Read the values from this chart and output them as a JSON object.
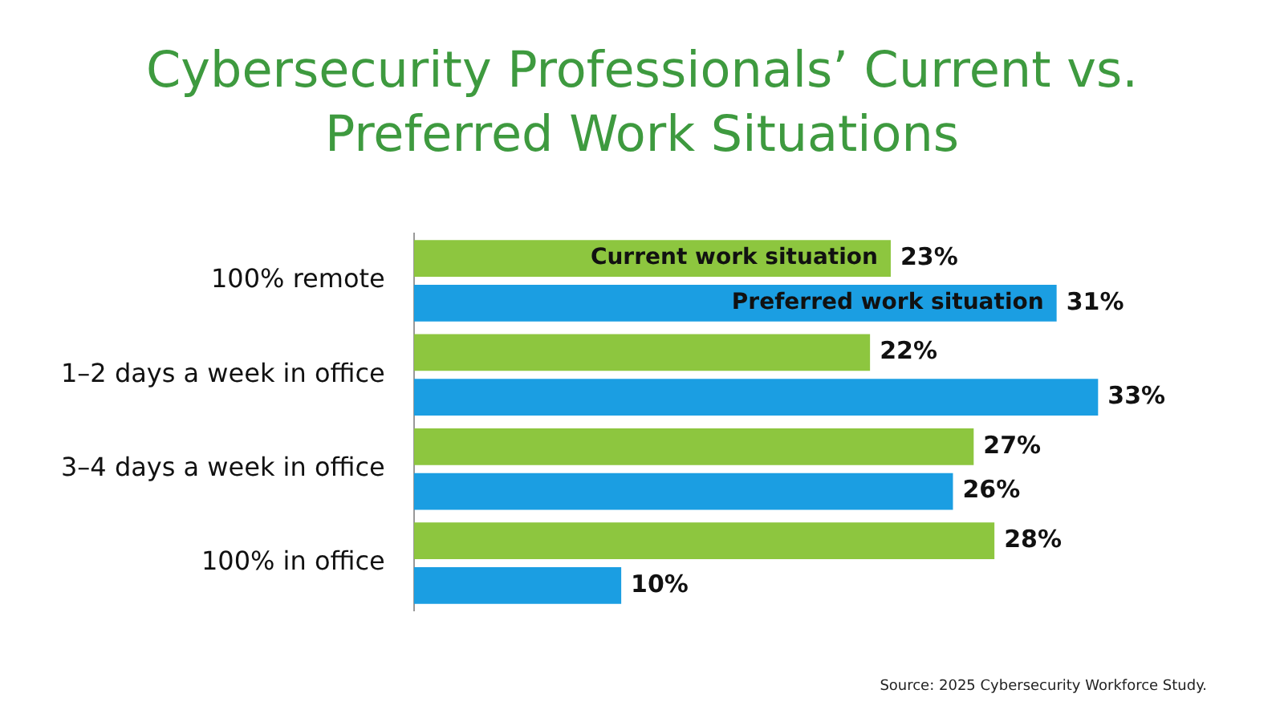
{
  "chart_data": {
    "type": "bar",
    "orientation": "horizontal",
    "title": "Cybersecurity Professionals’ Current vs. Preferred Work Situations",
    "categories": [
      "100% remote",
      "1–2 days a week in office",
      "3–4 days a week in office",
      "100% in office"
    ],
    "series": [
      {
        "name": "Current work situation",
        "color": "#8dc63f",
        "values": [
          23,
          22,
          27,
          28
        ],
        "value_labels": [
          "23%",
          "22%",
          "27%",
          "28%"
        ]
      },
      {
        "name": "Preferred work situation",
        "color": "#1b9ee2",
        "values": [
          31,
          33,
          26,
          10
        ],
        "value_labels": [
          "31%",
          "33%",
          "26%",
          "10%"
        ]
      }
    ],
    "legend": false,
    "grid": false,
    "annotations": [
      "Source: 2025 Cybersecurity Workforce Study."
    ]
  }
}
